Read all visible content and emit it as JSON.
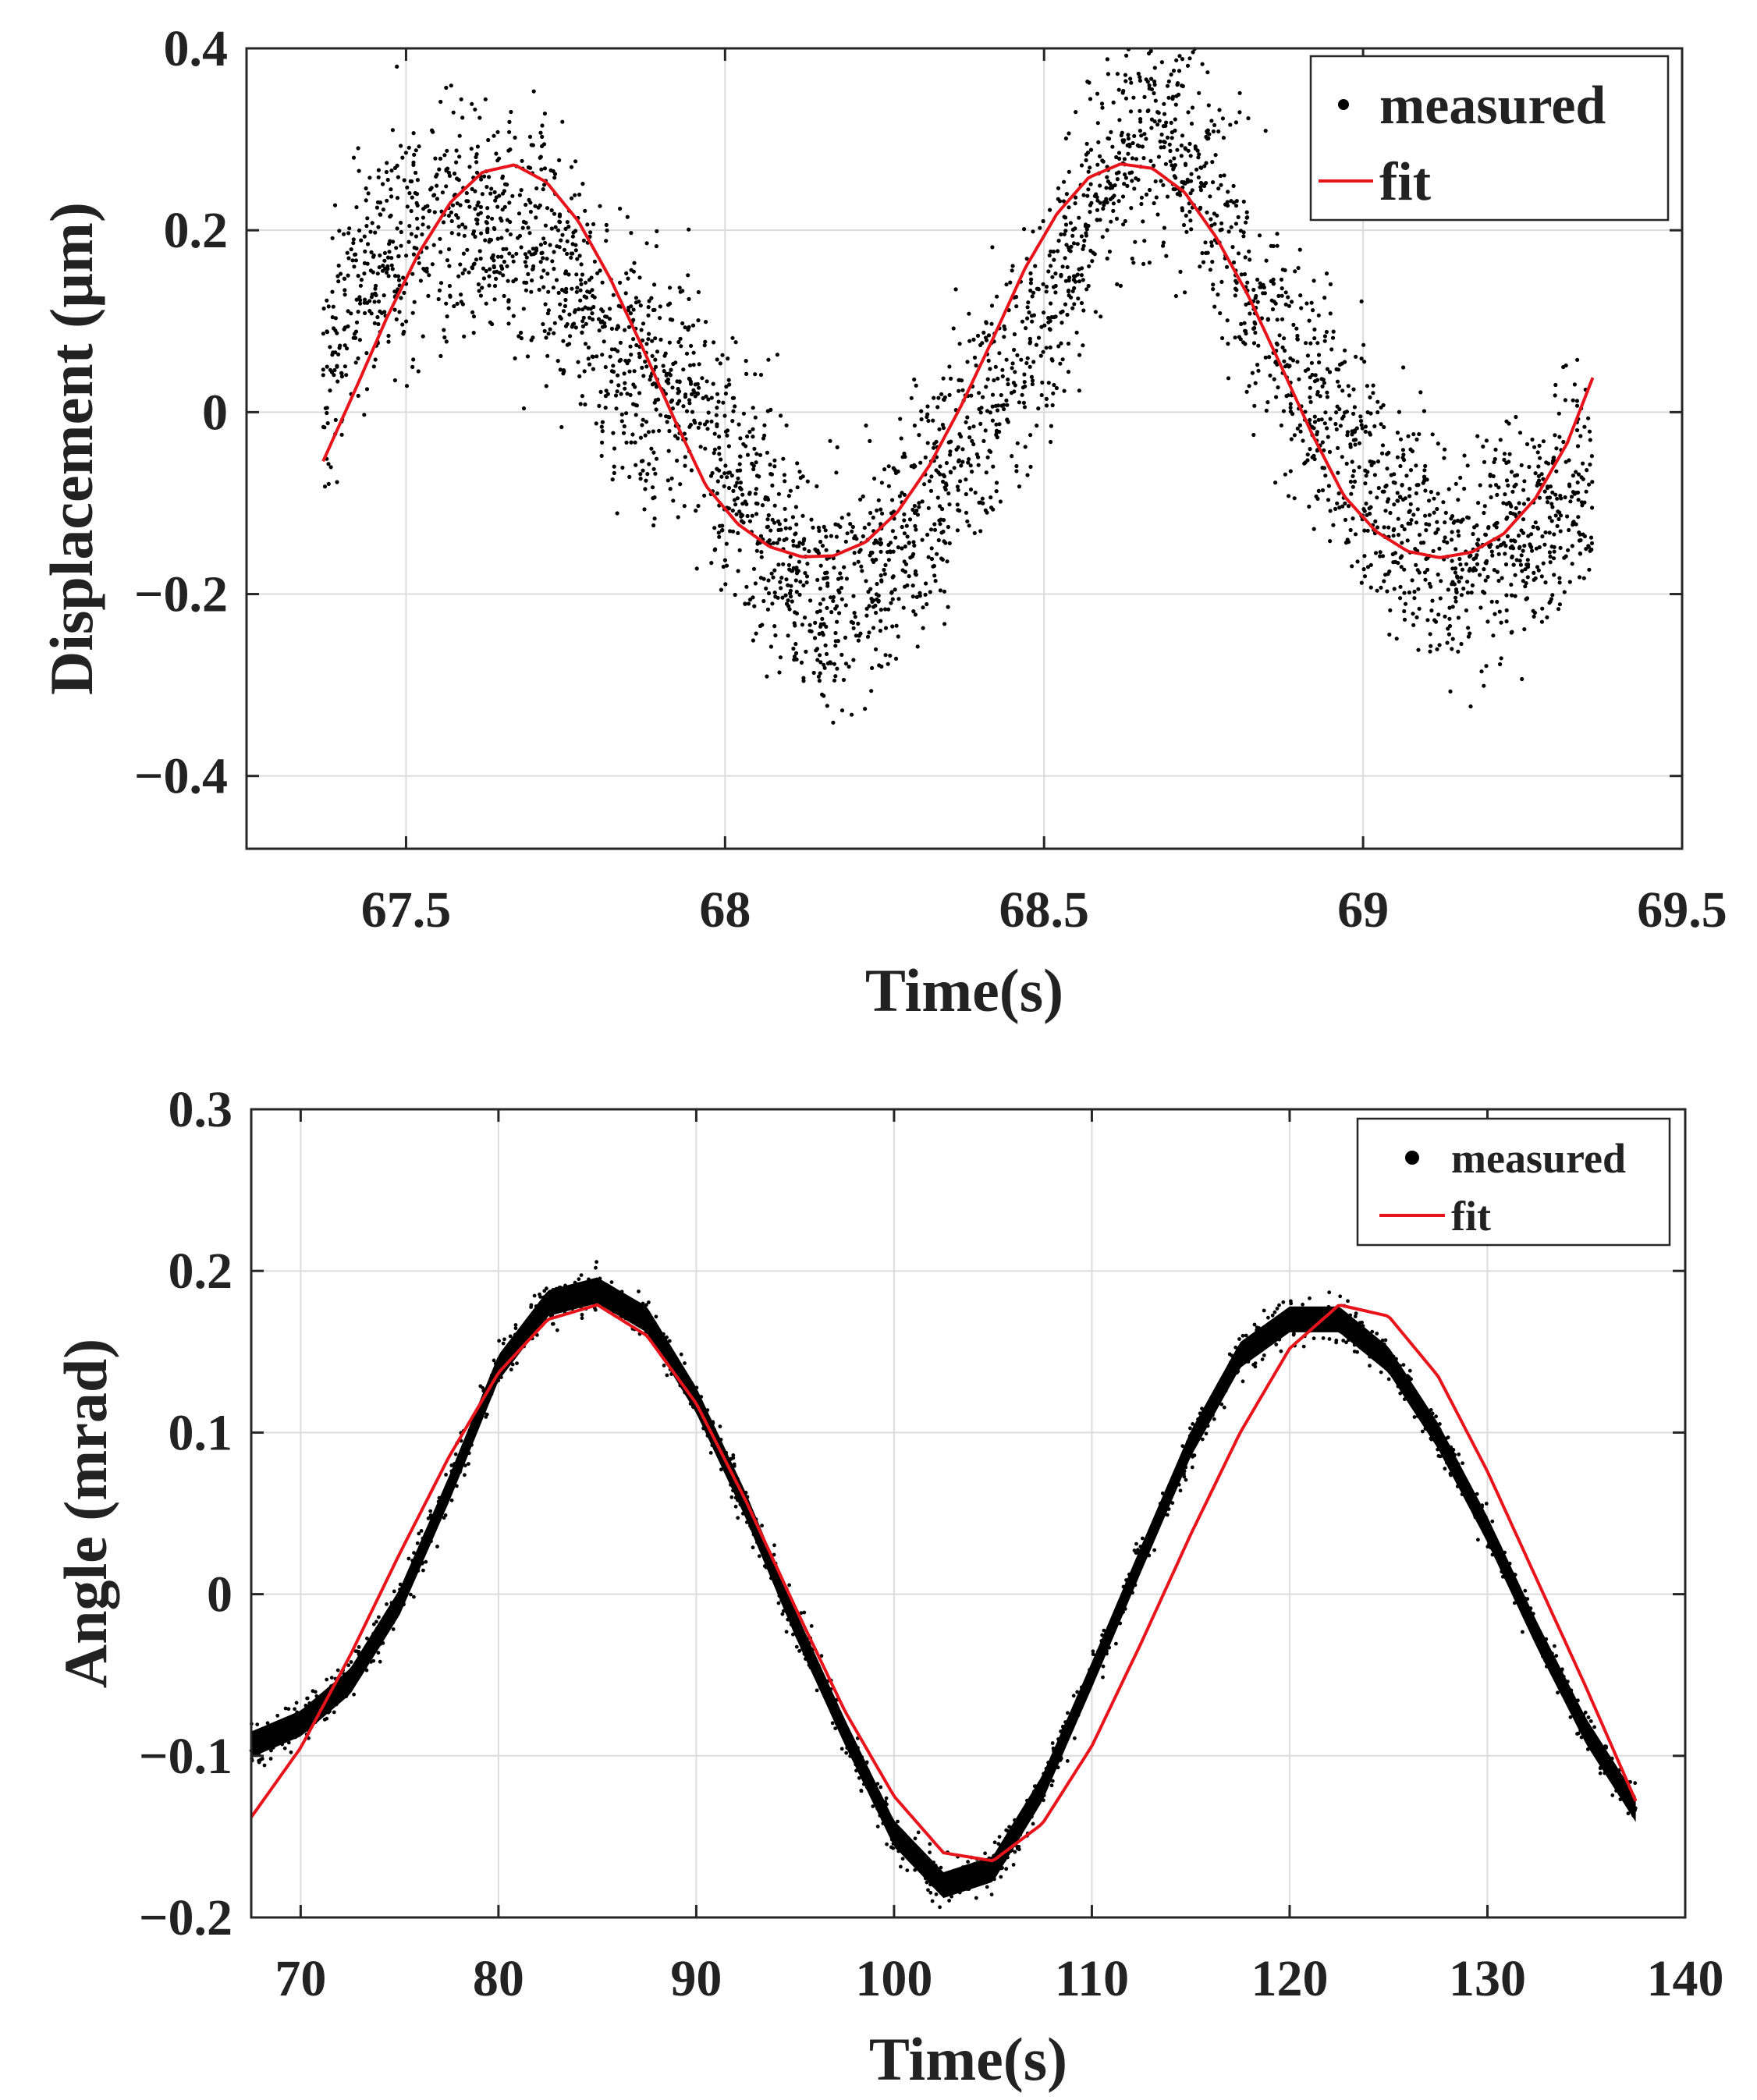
{
  "colors": {
    "measured": "#000000",
    "fit": "#e8141c",
    "grid": "#dcdcdc",
    "axis": "#262626"
  },
  "chart_data": [
    {
      "type": "scatter",
      "xlabel": "Time(s)",
      "ylabel": "Displacement (µm)",
      "xlim": [
        67.25,
        69.5
      ],
      "ylim": [
        -0.48,
        0.4
      ],
      "xticks": [
        67.5,
        68,
        68.5,
        69,
        69.5
      ],
      "xtick_labels": [
        "67.5",
        "68",
        "68.5",
        "69",
        "69.5"
      ],
      "yticks": [
        -0.4,
        -0.2,
        0,
        0.2,
        0.4
      ],
      "ytick_labels": [
        "−0.4",
        "−0.2",
        "0",
        "0.2",
        "0.4"
      ],
      "grid": true,
      "legend": {
        "position": "top-right",
        "entries": [
          "measured",
          "fit"
        ]
      },
      "series": [
        {
          "name": "measured",
          "style": "dots",
          "x": [
            67.37,
            67.42,
            67.47,
            67.52,
            67.57,
            67.62,
            67.67,
            67.72,
            67.77,
            67.82,
            67.87,
            67.92,
            67.97,
            68.02,
            68.07,
            68.12,
            68.17,
            68.22,
            68.27,
            68.32,
            68.37,
            68.42,
            68.47,
            68.52,
            68.57,
            68.62,
            68.67,
            68.72,
            68.77,
            68.82,
            68.87,
            68.92,
            68.97,
            69.02,
            69.07,
            69.12,
            69.17,
            69.22,
            69.27,
            69.32,
            69.36
          ],
          "y": [
            0.05,
            0.12,
            0.18,
            0.2,
            0.22,
            0.2,
            0.19,
            0.18,
            0.13,
            0.07,
            0.04,
            0.03,
            -0.02,
            -0.08,
            -0.12,
            -0.18,
            -0.2,
            -0.18,
            -0.15,
            -0.11,
            -0.04,
            0.02,
            0.06,
            0.13,
            0.23,
            0.29,
            0.31,
            0.29,
            0.22,
            0.14,
            0.08,
            0.02,
            -0.03,
            -0.08,
            -0.12,
            -0.15,
            -0.16,
            -0.13,
            -0.12,
            -0.1,
            -0.08
          ],
          "spread": 0.12,
          "points_per_sample": 90
        },
        {
          "name": "fit",
          "style": "line",
          "x": [
            67.37,
            67.42,
            67.47,
            67.52,
            67.57,
            67.62,
            67.67,
            67.72,
            67.77,
            67.82,
            67.87,
            67.92,
            67.97,
            68.02,
            68.07,
            68.12,
            68.17,
            68.22,
            68.27,
            68.32,
            68.37,
            68.42,
            68.47,
            68.52,
            68.57,
            68.62,
            68.67,
            68.72,
            68.77,
            68.82,
            68.87,
            68.92,
            68.97,
            69.02,
            69.07,
            69.12,
            69.17,
            69.22,
            69.27,
            69.32,
            69.36
          ],
          "y": [
            -0.054,
            0.024,
            0.104,
            0.175,
            0.231,
            0.264,
            0.272,
            0.253,
            0.21,
            0.147,
            0.072,
            -0.007,
            -0.081,
            -0.123,
            -0.148,
            -0.159,
            -0.158,
            -0.143,
            -0.11,
            -0.059,
            0.007,
            0.081,
            0.158,
            0.218,
            0.258,
            0.273,
            0.268,
            0.242,
            0.192,
            0.128,
            0.053,
            -0.024,
            -0.092,
            -0.131,
            -0.153,
            -0.16,
            -0.154,
            -0.134,
            -0.095,
            -0.034,
            0.038
          ]
        }
      ]
    },
    {
      "type": "scatter",
      "xlabel": "Time(s)",
      "ylabel": "Angle (mrad)",
      "xlim": [
        67.5,
        140
      ],
      "ylim": [
        -0.2,
        0.3
      ],
      "xticks": [
        70,
        80,
        90,
        100,
        110,
        120,
        130,
        140
      ],
      "xtick_labels": [
        "70",
        "80",
        "90",
        "100",
        "110",
        "120",
        "130",
        "140"
      ],
      "yticks": [
        -0.2,
        -0.1,
        0,
        0.1,
        0.2,
        0.3
      ],
      "ytick_labels": [
        "−0.2",
        "−0.1",
        "0",
        "0.1",
        "0.2",
        "0.3"
      ],
      "grid": true,
      "legend": {
        "position": "top-right",
        "entries": [
          "measured",
          "fit"
        ]
      },
      "series": [
        {
          "name": "measured",
          "style": "dense-band",
          "x": [
            67.5,
            70,
            72.5,
            75,
            77.5,
            80,
            82.5,
            85,
            87.5,
            90,
            92.5,
            95,
            97.5,
            100,
            102.5,
            105,
            107.5,
            110,
            112.5,
            115,
            117.5,
            120,
            122.5,
            125,
            127.5,
            130,
            132.5,
            135,
            137.5
          ],
          "y": [
            -0.093,
            -0.08,
            -0.054,
            -0.005,
            0.065,
            0.14,
            0.18,
            0.188,
            0.17,
            0.12,
            0.055,
            -0.018,
            -0.085,
            -0.148,
            -0.18,
            -0.17,
            -0.12,
            -0.05,
            0.022,
            0.093,
            0.148,
            0.17,
            0.17,
            0.145,
            0.098,
            0.04,
            -0.025,
            -0.085,
            -0.133
          ],
          "spread": 0.008
        },
        {
          "name": "fit",
          "style": "line",
          "x": [
            67.5,
            70,
            72.5,
            75,
            77.5,
            80,
            82.5,
            85,
            87.5,
            90,
            92.5,
            95,
            97.5,
            100,
            102.5,
            105,
            107.5,
            110,
            112.5,
            115,
            117.5,
            120,
            122.5,
            125,
            127.5,
            130,
            132.5,
            135,
            137.5
          ],
          "y": [
            -0.138,
            -0.095,
            -0.038,
            0.025,
            0.085,
            0.137,
            0.17,
            0.179,
            0.16,
            0.118,
            0.058,
            -0.008,
            -0.072,
            -0.125,
            -0.16,
            -0.165,
            -0.142,
            -0.094,
            -0.03,
            0.037,
            0.1,
            0.152,
            0.179,
            0.172,
            0.135,
            0.076,
            0.009,
            -0.058,
            -0.128
          ]
        }
      ]
    }
  ]
}
